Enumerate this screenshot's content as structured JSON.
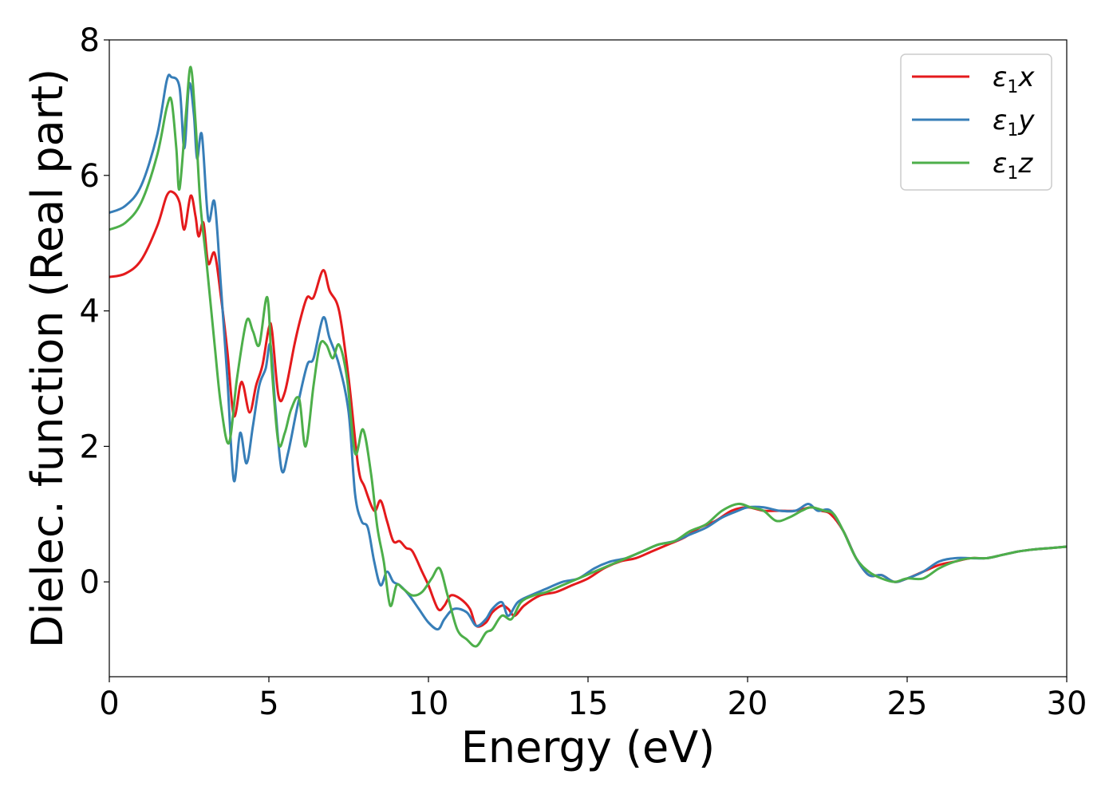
{
  "chart_data": {
    "type": "line",
    "xlabel": "Energy (eV)",
    "ylabel": "Dielec. function (Real part)",
    "xlim": [
      0,
      30
    ],
    "ylim": [
      -1.4,
      8
    ],
    "xticks": [
      0,
      5,
      10,
      15,
      20,
      25,
      30
    ],
    "yticks": [
      0,
      2,
      4,
      6,
      8
    ],
    "grid": false,
    "legend": {
      "position": "top-right"
    },
    "series": [
      {
        "name": "ε1x",
        "legend_symbol": "ε",
        "legend_sub": "1",
        "legend_suffix": "x",
        "color": "#e41a1c",
        "points": [
          [
            0.0,
            4.5
          ],
          [
            0.5,
            4.55
          ],
          [
            1.0,
            4.75
          ],
          [
            1.5,
            5.25
          ],
          [
            1.8,
            5.7
          ],
          [
            2.0,
            5.75
          ],
          [
            2.2,
            5.6
          ],
          [
            2.35,
            5.2
          ],
          [
            2.55,
            5.7
          ],
          [
            2.7,
            5.4
          ],
          [
            2.8,
            5.1
          ],
          [
            2.95,
            5.3
          ],
          [
            3.1,
            4.7
          ],
          [
            3.3,
            4.85
          ],
          [
            3.5,
            4.2
          ],
          [
            3.7,
            3.4
          ],
          [
            3.9,
            2.45
          ],
          [
            4.1,
            2.9
          ],
          [
            4.2,
            2.9
          ],
          [
            4.4,
            2.5
          ],
          [
            4.6,
            2.9
          ],
          [
            4.8,
            3.2
          ],
          [
            5.0,
            3.75
          ],
          [
            5.1,
            3.7
          ],
          [
            5.3,
            2.75
          ],
          [
            5.5,
            2.8
          ],
          [
            5.8,
            3.5
          ],
          [
            6.0,
            3.9
          ],
          [
            6.2,
            4.2
          ],
          [
            6.4,
            4.2
          ],
          [
            6.7,
            4.6
          ],
          [
            6.9,
            4.3
          ],
          [
            7.2,
            4.0
          ],
          [
            7.5,
            3.0
          ],
          [
            7.8,
            1.7
          ],
          [
            8.0,
            1.4
          ],
          [
            8.3,
            1.05
          ],
          [
            8.5,
            1.2
          ],
          [
            8.7,
            0.9
          ],
          [
            8.9,
            0.6
          ],
          [
            9.1,
            0.6
          ],
          [
            9.3,
            0.5
          ],
          [
            9.5,
            0.45
          ],
          [
            9.8,
            0.15
          ],
          [
            10.0,
            -0.05
          ],
          [
            10.3,
            -0.4
          ],
          [
            10.5,
            -0.35
          ],
          [
            10.7,
            -0.2
          ],
          [
            11.0,
            -0.25
          ],
          [
            11.3,
            -0.4
          ],
          [
            11.5,
            -0.65
          ],
          [
            11.8,
            -0.6
          ],
          [
            12.0,
            -0.45
          ],
          [
            12.3,
            -0.35
          ],
          [
            12.5,
            -0.4
          ],
          [
            12.7,
            -0.5
          ],
          [
            13.0,
            -0.35
          ],
          [
            13.5,
            -0.2
          ],
          [
            14.0,
            -0.15
          ],
          [
            14.5,
            -0.05
          ],
          [
            15.0,
            0.05
          ],
          [
            15.5,
            0.2
          ],
          [
            16.0,
            0.3
          ],
          [
            16.5,
            0.35
          ],
          [
            17.0,
            0.45
          ],
          [
            17.5,
            0.55
          ],
          [
            18.0,
            0.65
          ],
          [
            18.5,
            0.8
          ],
          [
            19.0,
            0.9
          ],
          [
            19.5,
            1.05
          ],
          [
            20.0,
            1.1
          ],
          [
            20.5,
            1.05
          ],
          [
            21.0,
            1.05
          ],
          [
            21.5,
            1.05
          ],
          [
            22.0,
            1.1
          ],
          [
            22.3,
            1.05
          ],
          [
            22.6,
            1.0
          ],
          [
            23.0,
            0.75
          ],
          [
            23.4,
            0.35
          ],
          [
            23.8,
            0.1
          ],
          [
            24.2,
            0.1
          ],
          [
            24.6,
            0.0
          ],
          [
            25.0,
            0.05
          ],
          [
            25.5,
            0.15
          ],
          [
            26.0,
            0.25
          ],
          [
            26.5,
            0.3
          ],
          [
            27.0,
            0.35
          ],
          [
            27.5,
            0.35
          ],
          [
            28.0,
            0.4
          ],
          [
            28.5,
            0.45
          ],
          [
            29.0,
            0.48
          ],
          [
            29.5,
            0.5
          ],
          [
            30.0,
            0.52
          ]
        ]
      },
      {
        "name": "ε1y",
        "legend_symbol": "ε",
        "legend_sub": "1",
        "legend_suffix": "y",
        "color": "#377eb8",
        "points": [
          [
            0.0,
            5.45
          ],
          [
            0.5,
            5.55
          ],
          [
            1.0,
            5.85
          ],
          [
            1.5,
            6.6
          ],
          [
            1.8,
            7.4
          ],
          [
            1.95,
            7.45
          ],
          [
            2.2,
            7.3
          ],
          [
            2.35,
            6.4
          ],
          [
            2.5,
            7.35
          ],
          [
            2.65,
            6.9
          ],
          [
            2.75,
            6.25
          ],
          [
            2.9,
            6.6
          ],
          [
            3.1,
            5.35
          ],
          [
            3.3,
            5.6
          ],
          [
            3.5,
            4.35
          ],
          [
            3.7,
            3.0
          ],
          [
            3.9,
            1.5
          ],
          [
            4.1,
            2.2
          ],
          [
            4.3,
            1.75
          ],
          [
            4.5,
            2.3
          ],
          [
            4.7,
            2.9
          ],
          [
            4.9,
            3.15
          ],
          [
            5.05,
            3.5
          ],
          [
            5.2,
            2.6
          ],
          [
            5.4,
            1.65
          ],
          [
            5.6,
            1.9
          ],
          [
            5.9,
            2.6
          ],
          [
            6.2,
            3.2
          ],
          [
            6.4,
            3.3
          ],
          [
            6.7,
            3.9
          ],
          [
            6.9,
            3.6
          ],
          [
            7.2,
            3.2
          ],
          [
            7.5,
            2.5
          ],
          [
            7.7,
            1.3
          ],
          [
            7.9,
            0.9
          ],
          [
            8.1,
            0.8
          ],
          [
            8.3,
            0.3
          ],
          [
            8.5,
            -0.05
          ],
          [
            8.7,
            0.15
          ],
          [
            8.9,
            0.0
          ],
          [
            9.1,
            -0.05
          ],
          [
            9.4,
            -0.2
          ],
          [
            9.7,
            -0.4
          ],
          [
            10.0,
            -0.6
          ],
          [
            10.3,
            -0.7
          ],
          [
            10.5,
            -0.55
          ],
          [
            10.8,
            -0.4
          ],
          [
            11.2,
            -0.45
          ],
          [
            11.5,
            -0.65
          ],
          [
            11.8,
            -0.55
          ],
          [
            12.0,
            -0.4
          ],
          [
            12.3,
            -0.3
          ],
          [
            12.5,
            -0.5
          ],
          [
            12.8,
            -0.3
          ],
          [
            13.2,
            -0.2
          ],
          [
            13.7,
            -0.1
          ],
          [
            14.2,
            0.0
          ],
          [
            14.7,
            0.05
          ],
          [
            15.2,
            0.2
          ],
          [
            15.7,
            0.3
          ],
          [
            16.2,
            0.35
          ],
          [
            16.7,
            0.45
          ],
          [
            17.2,
            0.55
          ],
          [
            17.7,
            0.6
          ],
          [
            18.2,
            0.7
          ],
          [
            18.7,
            0.8
          ],
          [
            19.2,
            0.95
          ],
          [
            19.7,
            1.05
          ],
          [
            20.0,
            1.1
          ],
          [
            20.5,
            1.1
          ],
          [
            21.0,
            1.05
          ],
          [
            21.5,
            1.05
          ],
          [
            21.9,
            1.15
          ],
          [
            22.2,
            1.05
          ],
          [
            22.6,
            1.05
          ],
          [
            23.0,
            0.75
          ],
          [
            23.4,
            0.35
          ],
          [
            23.8,
            0.1
          ],
          [
            24.2,
            0.1
          ],
          [
            24.6,
            0.0
          ],
          [
            25.0,
            0.05
          ],
          [
            25.5,
            0.15
          ],
          [
            26.0,
            0.3
          ],
          [
            26.5,
            0.35
          ],
          [
            27.0,
            0.35
          ],
          [
            27.5,
            0.35
          ],
          [
            28.0,
            0.4
          ],
          [
            28.5,
            0.45
          ],
          [
            29.0,
            0.48
          ],
          [
            29.5,
            0.5
          ],
          [
            30.0,
            0.52
          ]
        ]
      },
      {
        "name": "ε1z",
        "legend_symbol": "ε",
        "legend_sub": "1",
        "legend_suffix": "z",
        "color": "#4daf4a",
        "points": [
          [
            0.0,
            5.2
          ],
          [
            0.5,
            5.3
          ],
          [
            1.0,
            5.6
          ],
          [
            1.5,
            6.3
          ],
          [
            1.8,
            7.0
          ],
          [
            1.95,
            7.1
          ],
          [
            2.1,
            6.4
          ],
          [
            2.2,
            5.8
          ],
          [
            2.4,
            6.9
          ],
          [
            2.55,
            7.6
          ],
          [
            2.7,
            6.8
          ],
          [
            2.85,
            5.6
          ],
          [
            3.05,
            4.7
          ],
          [
            3.3,
            3.5
          ],
          [
            3.5,
            2.6
          ],
          [
            3.75,
            2.05
          ],
          [
            4.0,
            3.0
          ],
          [
            4.3,
            3.85
          ],
          [
            4.5,
            3.7
          ],
          [
            4.7,
            3.5
          ],
          [
            4.95,
            4.2
          ],
          [
            5.1,
            3.1
          ],
          [
            5.3,
            2.05
          ],
          [
            5.5,
            2.2
          ],
          [
            5.7,
            2.55
          ],
          [
            5.95,
            2.7
          ],
          [
            6.15,
            2.0
          ],
          [
            6.4,
            2.9
          ],
          [
            6.6,
            3.5
          ],
          [
            6.8,
            3.5
          ],
          [
            7.0,
            3.3
          ],
          [
            7.2,
            3.5
          ],
          [
            7.45,
            3.0
          ],
          [
            7.7,
            1.9
          ],
          [
            7.95,
            2.25
          ],
          [
            8.2,
            1.6
          ],
          [
            8.4,
            0.8
          ],
          [
            8.6,
            0.3
          ],
          [
            8.8,
            -0.35
          ],
          [
            9.0,
            -0.05
          ],
          [
            9.2,
            -0.1
          ],
          [
            9.5,
            -0.2
          ],
          [
            9.8,
            -0.15
          ],
          [
            10.1,
            0.05
          ],
          [
            10.35,
            0.2
          ],
          [
            10.6,
            -0.2
          ],
          [
            10.9,
            -0.7
          ],
          [
            11.2,
            -0.85
          ],
          [
            11.5,
            -0.95
          ],
          [
            11.8,
            -0.75
          ],
          [
            12.0,
            -0.7
          ],
          [
            12.3,
            -0.5
          ],
          [
            12.6,
            -0.55
          ],
          [
            12.9,
            -0.3
          ],
          [
            13.3,
            -0.2
          ],
          [
            13.7,
            -0.15
          ],
          [
            14.2,
            -0.05
          ],
          [
            14.7,
            0.05
          ],
          [
            15.2,
            0.15
          ],
          [
            15.7,
            0.25
          ],
          [
            16.2,
            0.35
          ],
          [
            16.7,
            0.45
          ],
          [
            17.2,
            0.55
          ],
          [
            17.7,
            0.6
          ],
          [
            18.2,
            0.75
          ],
          [
            18.7,
            0.85
          ],
          [
            19.2,
            1.05
          ],
          [
            19.7,
            1.15
          ],
          [
            20.1,
            1.1
          ],
          [
            20.5,
            1.05
          ],
          [
            20.9,
            0.9
          ],
          [
            21.3,
            0.95
          ],
          [
            21.7,
            1.05
          ],
          [
            22.0,
            1.1
          ],
          [
            22.4,
            1.05
          ],
          [
            22.7,
            1.0
          ],
          [
            23.0,
            0.75
          ],
          [
            23.4,
            0.35
          ],
          [
            23.8,
            0.15
          ],
          [
            24.2,
            0.05
          ],
          [
            24.6,
            0.0
          ],
          [
            25.0,
            0.05
          ],
          [
            25.5,
            0.05
          ],
          [
            26.0,
            0.2
          ],
          [
            26.5,
            0.3
          ],
          [
            27.0,
            0.35
          ],
          [
            27.5,
            0.35
          ],
          [
            28.0,
            0.4
          ],
          [
            28.5,
            0.45
          ],
          [
            29.0,
            0.48
          ],
          [
            29.5,
            0.5
          ],
          [
            30.0,
            0.52
          ]
        ]
      }
    ]
  }
}
